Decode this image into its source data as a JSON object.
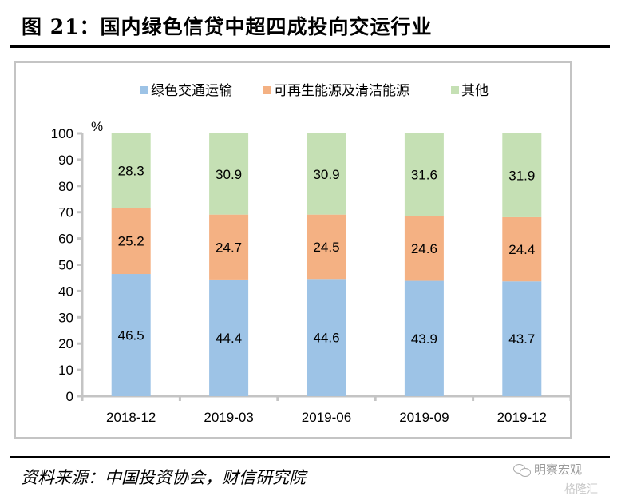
{
  "figure": {
    "title": "图 21：国内绿色信贷中超四成投向交运行业",
    "source": "资料来源：中国投资协会，财信研究院",
    "watermark": "明察宏观",
    "watermark2": "格隆汇"
  },
  "chart_data": {
    "type": "bar",
    "stacked": true,
    "title": "",
    "xlabel": "",
    "ylabel": "%",
    "ylim": [
      0,
      100
    ],
    "yticks": [
      0,
      10,
      20,
      30,
      40,
      50,
      60,
      70,
      80,
      90,
      100
    ],
    "grid": false,
    "legend_position": "top-center",
    "categories": [
      "2018-12",
      "2019-03",
      "2019-06",
      "2019-09",
      "2019-12"
    ],
    "series": [
      {
        "name": "绿色交通运输",
        "color": "#9dc3e6",
        "values": [
          46.5,
          44.4,
          44.6,
          43.9,
          43.7
        ]
      },
      {
        "name": "可再生能源及清洁能源",
        "color": "#f4b183",
        "values": [
          25.2,
          24.7,
          24.5,
          24.6,
          24.4
        ]
      },
      {
        "name": "其他",
        "color": "#c5e0b4",
        "values": [
          28.3,
          30.9,
          30.9,
          31.6,
          31.9
        ]
      }
    ]
  }
}
